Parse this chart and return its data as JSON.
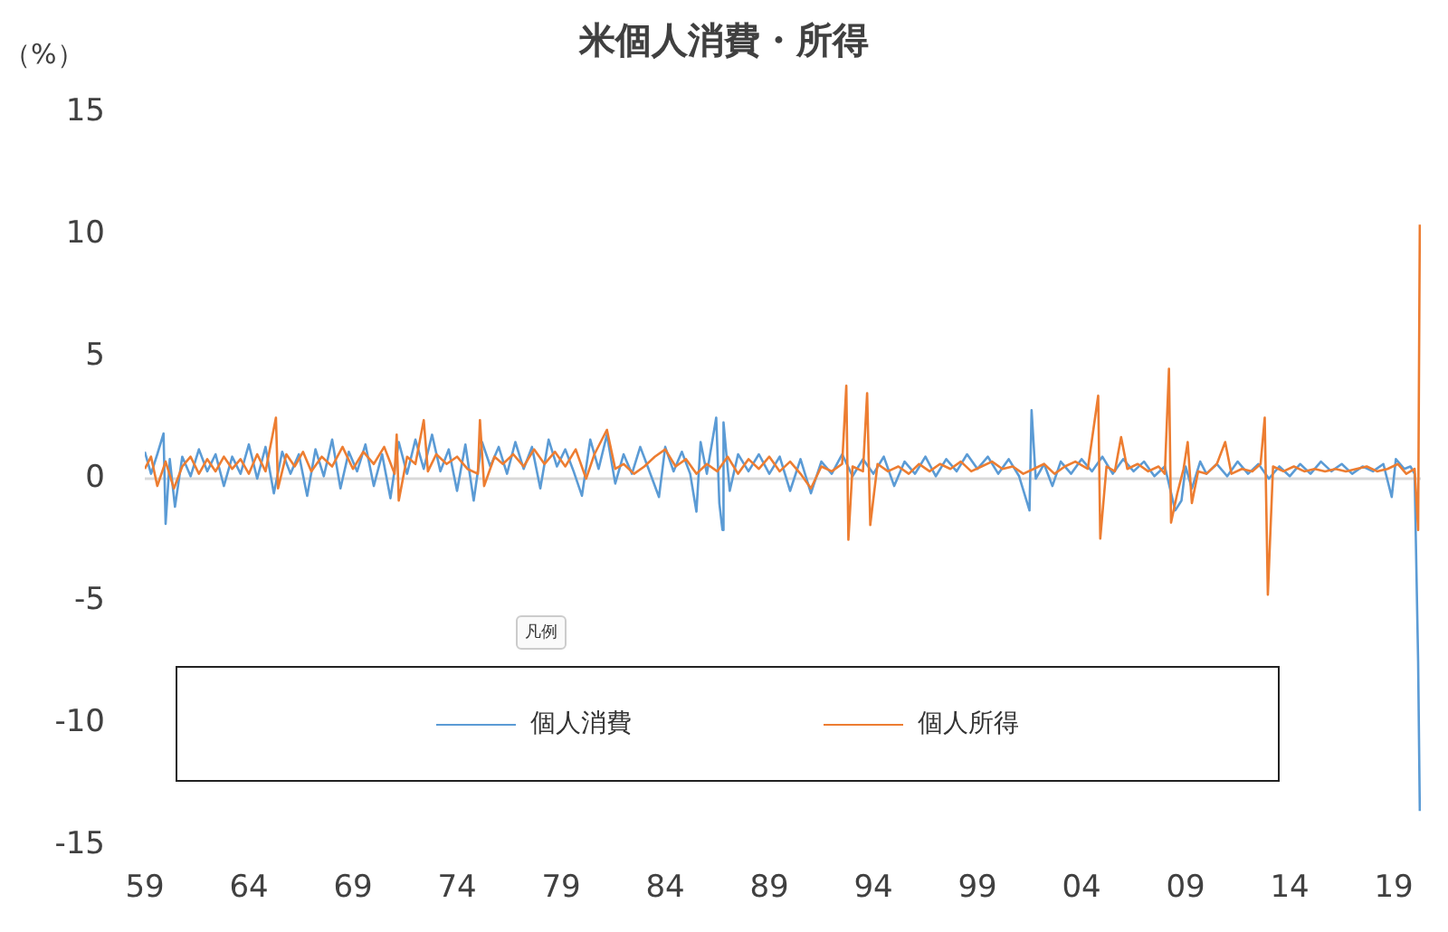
{
  "chart_data": {
    "type": "line",
    "title": "米個人消費・所得",
    "ylabel": "（%）",
    "legend_title": "凡例",
    "legend": "bottom",
    "grid": false,
    "marker": "none",
    "line_style": "solid",
    "xlim": [
      1959,
      2020.3
    ],
    "ylim": [
      -15,
      15
    ],
    "yticks": [
      -15,
      -10,
      -5,
      0,
      5,
      10,
      15
    ],
    "xticks": [
      {
        "value": 1959,
        "label": "59"
      },
      {
        "value": 1964,
        "label": "64"
      },
      {
        "value": 1969,
        "label": "69"
      },
      {
        "value": 1974,
        "label": "74"
      },
      {
        "value": 1979,
        "label": "79"
      },
      {
        "value": 1984,
        "label": "84"
      },
      {
        "value": 1989,
        "label": "89"
      },
      {
        "value": 1994,
        "label": "94"
      },
      {
        "value": 1999,
        "label": "99"
      },
      {
        "value": 2004,
        "label": "04"
      },
      {
        "value": 2009,
        "label": "09"
      },
      {
        "value": 2014,
        "label": "14"
      },
      {
        "value": 2019,
        "label": "19"
      }
    ],
    "ref_lines": [
      {
        "axis": "y",
        "value": 0,
        "color": "#d9d9d9"
      }
    ],
    "series": [
      {
        "name": "個人消費",
        "color": "#5b9bd5",
        "x": [
          1959.0,
          1959.3,
          1959.6,
          1959.9,
          1960.0,
          1960.2,
          1960.45,
          1960.8,
          1961.2,
          1961.6,
          1962.0,
          1962.4,
          1962.8,
          1963.2,
          1963.6,
          1964.0,
          1964.4,
          1964.8,
          1965.2,
          1965.6,
          1966.0,
          1966.4,
          1966.8,
          1967.2,
          1967.6,
          1968.0,
          1968.4,
          1968.8,
          1969.2,
          1969.6,
          1970.0,
          1970.4,
          1970.8,
          1971.2,
          1971.6,
          1972.0,
          1972.4,
          1972.8,
          1973.2,
          1973.6,
          1974.0,
          1974.4,
          1974.8,
          1975.2,
          1975.6,
          1976.0,
          1976.4,
          1976.8,
          1977.2,
          1977.6,
          1978.0,
          1978.4,
          1978.8,
          1979.2,
          1979.6,
          1980.0,
          1980.4,
          1980.8,
          1981.2,
          1981.6,
          1982.0,
          1982.4,
          1982.8,
          1983.2,
          1983.7,
          1984.0,
          1984.4,
          1984.8,
          1985.2,
          1985.5,
          1985.7,
          1986.0,
          1986.45,
          1986.6,
          1986.75,
          1986.8,
          1987.1,
          1987.5,
          1988.0,
          1988.5,
          1989.0,
          1989.5,
          1990.0,
          1990.5,
          1991.0,
          1991.5,
          1992.0,
          1992.5,
          1993.0,
          1993.5,
          1994.0,
          1994.5,
          1995.0,
          1995.5,
          1996.0,
          1996.5,
          1997.0,
          1997.5,
          1998.0,
          1998.5,
          1999.0,
          1999.5,
          2000.0,
          2000.5,
          2001.0,
          2001.5,
          2001.6,
          2001.8,
          2002.2,
          2002.6,
          2003.0,
          2003.5,
          2004.0,
          2004.5,
          2005.0,
          2005.5,
          2006.0,
          2006.5,
          2007.0,
          2007.5,
          2008.0,
          2008.5,
          2008.8,
          2009.0,
          2009.3,
          2009.7,
          2010.0,
          2010.5,
          2011.0,
          2011.5,
          2012.0,
          2012.5,
          2013.0,
          2013.5,
          2014.0,
          2014.5,
          2015.0,
          2015.5,
          2016.0,
          2016.5,
          2017.0,
          2017.5,
          2018.0,
          2018.5,
          2018.9,
          2019.1,
          2019.5,
          2019.8,
          2020.0,
          2020.17,
          2020.25
        ],
        "values": [
          1.1,
          0.2,
          1.0,
          1.85,
          -1.85,
          0.8,
          -1.15,
          0.9,
          0.1,
          1.2,
          0.3,
          1.0,
          -0.3,
          0.9,
          0.2,
          1.4,
          0.0,
          1.3,
          -0.6,
          1.1,
          0.2,
          1.0,
          -0.7,
          1.2,
          0.1,
          1.6,
          -0.4,
          1.1,
          0.3,
          1.4,
          -0.3,
          1.0,
          -0.8,
          1.5,
          0.2,
          1.6,
          0.4,
          1.8,
          0.3,
          1.2,
          -0.5,
          1.4,
          -0.9,
          1.5,
          0.5,
          1.3,
          0.2,
          1.5,
          0.4,
          1.3,
          -0.4,
          1.6,
          0.5,
          1.2,
          0.3,
          -0.7,
          1.6,
          0.4,
          1.8,
          -0.2,
          1.0,
          0.2,
          1.3,
          0.4,
          -0.75,
          1.3,
          0.3,
          1.1,
          0.2,
          -1.35,
          1.5,
          0.2,
          2.5,
          -1.0,
          -2.1,
          2.3,
          -0.5,
          1.0,
          0.3,
          1.0,
          0.2,
          0.9,
          -0.5,
          0.8,
          -0.6,
          0.7,
          0.2,
          1.0,
          0.1,
          0.8,
          0.2,
          0.9,
          -0.3,
          0.7,
          0.2,
          0.9,
          0.1,
          0.8,
          0.3,
          1.0,
          0.4,
          0.9,
          0.2,
          0.8,
          0.1,
          -1.3,
          2.8,
          0.0,
          0.6,
          -0.3,
          0.7,
          0.2,
          0.8,
          0.3,
          0.9,
          0.2,
          0.8,
          0.3,
          0.7,
          0.1,
          0.5,
          -1.3,
          -0.9,
          0.5,
          -0.4,
          0.7,
          0.2,
          0.6,
          0.1,
          0.7,
          0.2,
          0.6,
          0.0,
          0.5,
          0.1,
          0.6,
          0.2,
          0.7,
          0.3,
          0.6,
          0.2,
          0.5,
          0.3,
          0.6,
          -0.75,
          0.8,
          0.4,
          0.5,
          0.2,
          -7.5,
          -13.6
        ]
      },
      {
        "name": "個人所得",
        "color": "#ed7d31",
        "x": [
          1959.0,
          1959.3,
          1959.6,
          1960.0,
          1960.4,
          1960.8,
          1961.2,
          1961.6,
          1962.0,
          1962.4,
          1962.8,
          1963.2,
          1963.6,
          1964.0,
          1964.4,
          1964.8,
          1965.3,
          1965.4,
          1965.8,
          1966.2,
          1966.6,
          1967.0,
          1967.5,
          1968.0,
          1968.5,
          1969.0,
          1969.5,
          1970.0,
          1970.5,
          1971.0,
          1971.1,
          1971.2,
          1971.6,
          1972.0,
          1972.4,
          1972.6,
          1973.0,
          1973.5,
          1974.0,
          1974.5,
          1975.0,
          1975.1,
          1975.3,
          1975.8,
          1976.2,
          1976.7,
          1977.2,
          1977.7,
          1978.2,
          1978.7,
          1979.2,
          1979.7,
          1980.2,
          1980.6,
          1981.2,
          1981.6,
          1982.0,
          1982.5,
          1983.0,
          1983.5,
          1984.0,
          1984.5,
          1985.0,
          1985.5,
          1986.0,
          1986.5,
          1987.0,
          1987.5,
          1988.0,
          1988.5,
          1989.0,
          1989.5,
          1990.0,
          1990.5,
          1991.0,
          1991.5,
          1992.0,
          1992.5,
          1992.7,
          1992.8,
          1993.0,
          1993.5,
          1993.7,
          1993.85,
          1994.2,
          1994.7,
          1995.2,
          1995.7,
          1996.2,
          1996.7,
          1997.2,
          1997.7,
          1998.2,
          1998.7,
          1999.2,
          1999.7,
          2000.2,
          2000.7,
          2001.2,
          2001.7,
          2002.2,
          2002.7,
          2003.2,
          2003.7,
          2004.3,
          2004.8,
          2004.9,
          2005.2,
          2005.6,
          2005.9,
          2006.2,
          2006.7,
          2007.2,
          2007.7,
          2008.0,
          2008.2,
          2008.3,
          2008.6,
          2008.9,
          2009.1,
          2009.3,
          2009.6,
          2010.0,
          2010.5,
          2010.9,
          2011.2,
          2011.7,
          2012.2,
          2012.6,
          2012.8,
          2012.95,
          2013.2,
          2013.7,
          2014.2,
          2014.7,
          2015.2,
          2015.7,
          2016.2,
          2016.7,
          2017.2,
          2017.7,
          2018.2,
          2018.7,
          2019.2,
          2019.6,
          2020.0,
          2020.17,
          2020.25
        ],
        "values": [
          0.4,
          0.9,
          -0.3,
          0.7,
          -0.4,
          0.5,
          0.9,
          0.2,
          0.8,
          0.3,
          0.9,
          0.4,
          0.8,
          0.2,
          1.0,
          0.3,
          2.5,
          -0.4,
          1.0,
          0.5,
          1.1,
          0.3,
          0.9,
          0.5,
          1.3,
          0.4,
          1.1,
          0.6,
          1.3,
          0.2,
          1.8,
          -0.9,
          0.9,
          0.6,
          2.4,
          0.3,
          1.0,
          0.6,
          0.9,
          0.4,
          0.2,
          2.4,
          -0.3,
          0.9,
          0.6,
          1.0,
          0.5,
          1.2,
          0.6,
          1.1,
          0.5,
          1.2,
          0.0,
          1.0,
          2.0,
          0.4,
          0.6,
          0.2,
          0.5,
          0.9,
          1.2,
          0.5,
          0.8,
          0.2,
          0.6,
          0.3,
          0.9,
          0.2,
          0.8,
          0.4,
          0.9,
          0.3,
          0.7,
          0.2,
          -0.4,
          0.5,
          0.3,
          0.6,
          3.8,
          -2.5,
          0.5,
          0.3,
          3.5,
          -1.9,
          0.6,
          0.3,
          0.5,
          0.2,
          0.6,
          0.3,
          0.6,
          0.4,
          0.7,
          0.3,
          0.5,
          0.7,
          0.4,
          0.5,
          0.2,
          0.4,
          0.6,
          0.2,
          0.5,
          0.7,
          0.4,
          3.4,
          -2.45,
          0.5,
          0.3,
          1.7,
          0.4,
          0.6,
          0.3,
          0.5,
          0.2,
          4.5,
          -1.8,
          -0.6,
          0.4,
          1.5,
          -1.0,
          0.3,
          0.2,
          0.6,
          1.5,
          0.2,
          0.4,
          0.3,
          0.6,
          2.5,
          -4.75,
          0.5,
          0.3,
          0.5,
          0.3,
          0.4,
          0.3,
          0.4,
          0.3,
          0.4,
          0.5,
          0.3,
          0.4,
          0.6,
          0.2,
          0.4,
          -2.1,
          10.4
        ]
      }
    ]
  }
}
